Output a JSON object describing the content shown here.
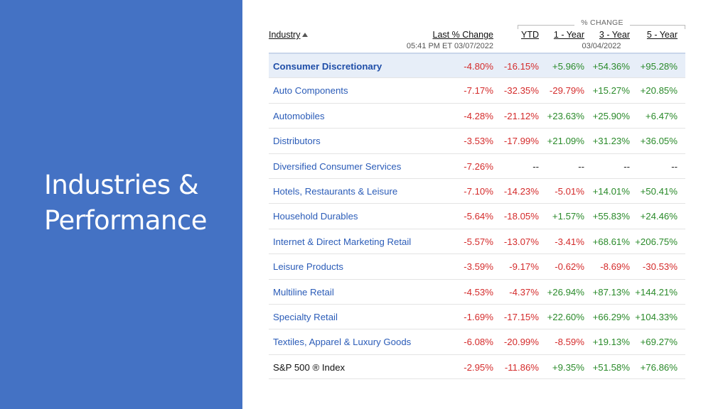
{
  "slide": {
    "title_lines": [
      "Industries &",
      "Performance"
    ]
  },
  "table": {
    "headers": {
      "industry": "Industry",
      "last_change": "Last % Change",
      "last_change_time": "05:41 PM ET 03/07/2022",
      "pct_change_group": "% CHANGE",
      "ytd": "YTD",
      "one_year": "1 - Year",
      "three_year": "3 - Year",
      "five_year": "5 - Year",
      "group_date": "03/04/2022"
    },
    "rows": [
      {
        "name": "Consumer Discretionary",
        "last": "-4.80%",
        "ytd": "-16.15%",
        "y1": "+5.96%",
        "y3": "+54.36%",
        "y5": "+95.28%"
      },
      {
        "name": "Auto Components",
        "last": "-7.17%",
        "ytd": "-32.35%",
        "y1": "-29.79%",
        "y3": "+15.27%",
        "y5": "+20.85%"
      },
      {
        "name": "Automobiles",
        "last": "-4.28%",
        "ytd": "-21.12%",
        "y1": "+23.63%",
        "y3": "+25.90%",
        "y5": "+6.47%"
      },
      {
        "name": "Distributors",
        "last": "-3.53%",
        "ytd": "-17.99%",
        "y1": "+21.09%",
        "y3": "+31.23%",
        "y5": "+36.05%"
      },
      {
        "name": "Diversified Consumer Services",
        "last": "-7.26%",
        "ytd": "--",
        "y1": "--",
        "y3": "--",
        "y5": "--"
      },
      {
        "name": "Hotels, Restaurants & Leisure",
        "last": "-7.10%",
        "ytd": "-14.23%",
        "y1": "-5.01%",
        "y3": "+14.01%",
        "y5": "+50.41%"
      },
      {
        "name": "Household Durables",
        "last": "-5.64%",
        "ytd": "-18.05%",
        "y1": "+1.57%",
        "y3": "+55.83%",
        "y5": "+24.46%"
      },
      {
        "name": "Internet & Direct Marketing Retail",
        "last": "-5.57%",
        "ytd": "-13.07%",
        "y1": "-3.41%",
        "y3": "+68.61%",
        "y5": "+206.75%"
      },
      {
        "name": "Leisure Products",
        "last": "-3.59%",
        "ytd": "-9.17%",
        "y1": "-0.62%",
        "y3": "-8.69%",
        "y5": "-30.53%"
      },
      {
        "name": "Multiline Retail",
        "last": "-4.53%",
        "ytd": "-4.37%",
        "y1": "+26.94%",
        "y3": "+87.13%",
        "y5": "+144.21%"
      },
      {
        "name": "Specialty Retail",
        "last": "-1.69%",
        "ytd": "-17.15%",
        "y1": "+22.60%",
        "y3": "+66.29%",
        "y5": "+104.33%"
      },
      {
        "name": "Textiles, Apparel & Luxury Goods",
        "last": "-6.08%",
        "ytd": "-20.99%",
        "y1": "-8.59%",
        "y3": "+19.13%",
        "y5": "+69.27%"
      },
      {
        "name": "S&P 500 ® Index",
        "last": "-2.95%",
        "ytd": "-11.86%",
        "y1": "+9.35%",
        "y3": "+51.58%",
        "y5": "+76.86%"
      }
    ]
  },
  "colors": {
    "panel": "#4472c4",
    "negative": "#d42b2b",
    "positive": "#2a8a2a",
    "link": "#2b5cb8"
  }
}
